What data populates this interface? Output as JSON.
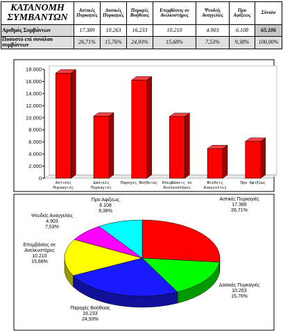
{
  "table": {
    "header": [
      "ΚΑΤΑΝΟΜΗ ΣΥΜΒΑΝΤΩΝ",
      "Αστικές Πυρκαγιές",
      "Δασικές Πυρκαγιές",
      "Παροχές Βοήθειας",
      "Επεμβάσεις σε Ανελκυστήρες",
      "Ψευδείς Αναγγελίες",
      "Προ Αφίξεως",
      "Σύνολο"
    ],
    "rows": [
      [
        "Αριθμός Συμβάντων",
        "17.389",
        "10.263",
        "16.233",
        "10.210",
        "4.903",
        "6.108",
        "65.106"
      ],
      [
        "Ποσοστό επί συνόλου συμβάντων",
        "26,71%",
        "15,76%",
        "24,93%",
        "15,68%",
        "7,53%",
        "9,38%",
        "100,00%"
      ]
    ]
  },
  "chart_data": [
    {
      "type": "bar3d",
      "categories": [
        "Αστικές Πυρκαγιές",
        "Δασικές Πυρκαγιές",
        "Παροχές Βοήθειας",
        "Επεμβάσεις σε Ανελκυστήρες",
        "Ψευδείς Αναγγελίες",
        "Προ Αφίξεως"
      ],
      "values": [
        17389,
        10263,
        16233,
        10210,
        4903,
        6108
      ],
      "color": "#ff0000",
      "ylim": [
        0,
        18000
      ],
      "yticks": [
        0,
        {
          "value": 2000,
          "label": "2.000"
        },
        {
          "value": 4000,
          "label": "4.000"
        },
        {
          "value": 6000,
          "label": "6.000"
        },
        {
          "value": 8000,
          "label": "8.000"
        },
        {
          "value": 10000,
          "label": "10.000"
        },
        {
          "value": 12000,
          "label": "12.000"
        },
        {
          "value": 14000,
          "label": "14.000"
        },
        {
          "value": 16000,
          "label": "16.000"
        },
        {
          "value": 18000,
          "label": "18.000"
        }
      ],
      "grid": false
    },
    {
      "type": "pie3d",
      "categories": [
        "Αστικές Πυρκαγιές",
        "Δασικές Πυρκαγιές",
        "Παροχές Βοήθειας",
        "Επεμβάσεις σε Ανελκυστήρες",
        "Ψευδείς Αναγγελίες",
        "Προ Αφίξεως"
      ],
      "values": [
        17389,
        10263,
        16233,
        10210,
        4903,
        6108
      ],
      "value_labels": [
        "17.389",
        "10.263",
        "16.233",
        "10.210",
        "4.903",
        "6.108"
      ],
      "share_labels": [
        "26,71%",
        "15,76%",
        "24,93%",
        "15,68%",
        "7,53%",
        "9,38%"
      ],
      "colors": [
        "#ff0000",
        "#00ff00",
        "#1a1aff",
        "#ffff00",
        "#ff00ff",
        "#00ffff"
      ]
    }
  ]
}
